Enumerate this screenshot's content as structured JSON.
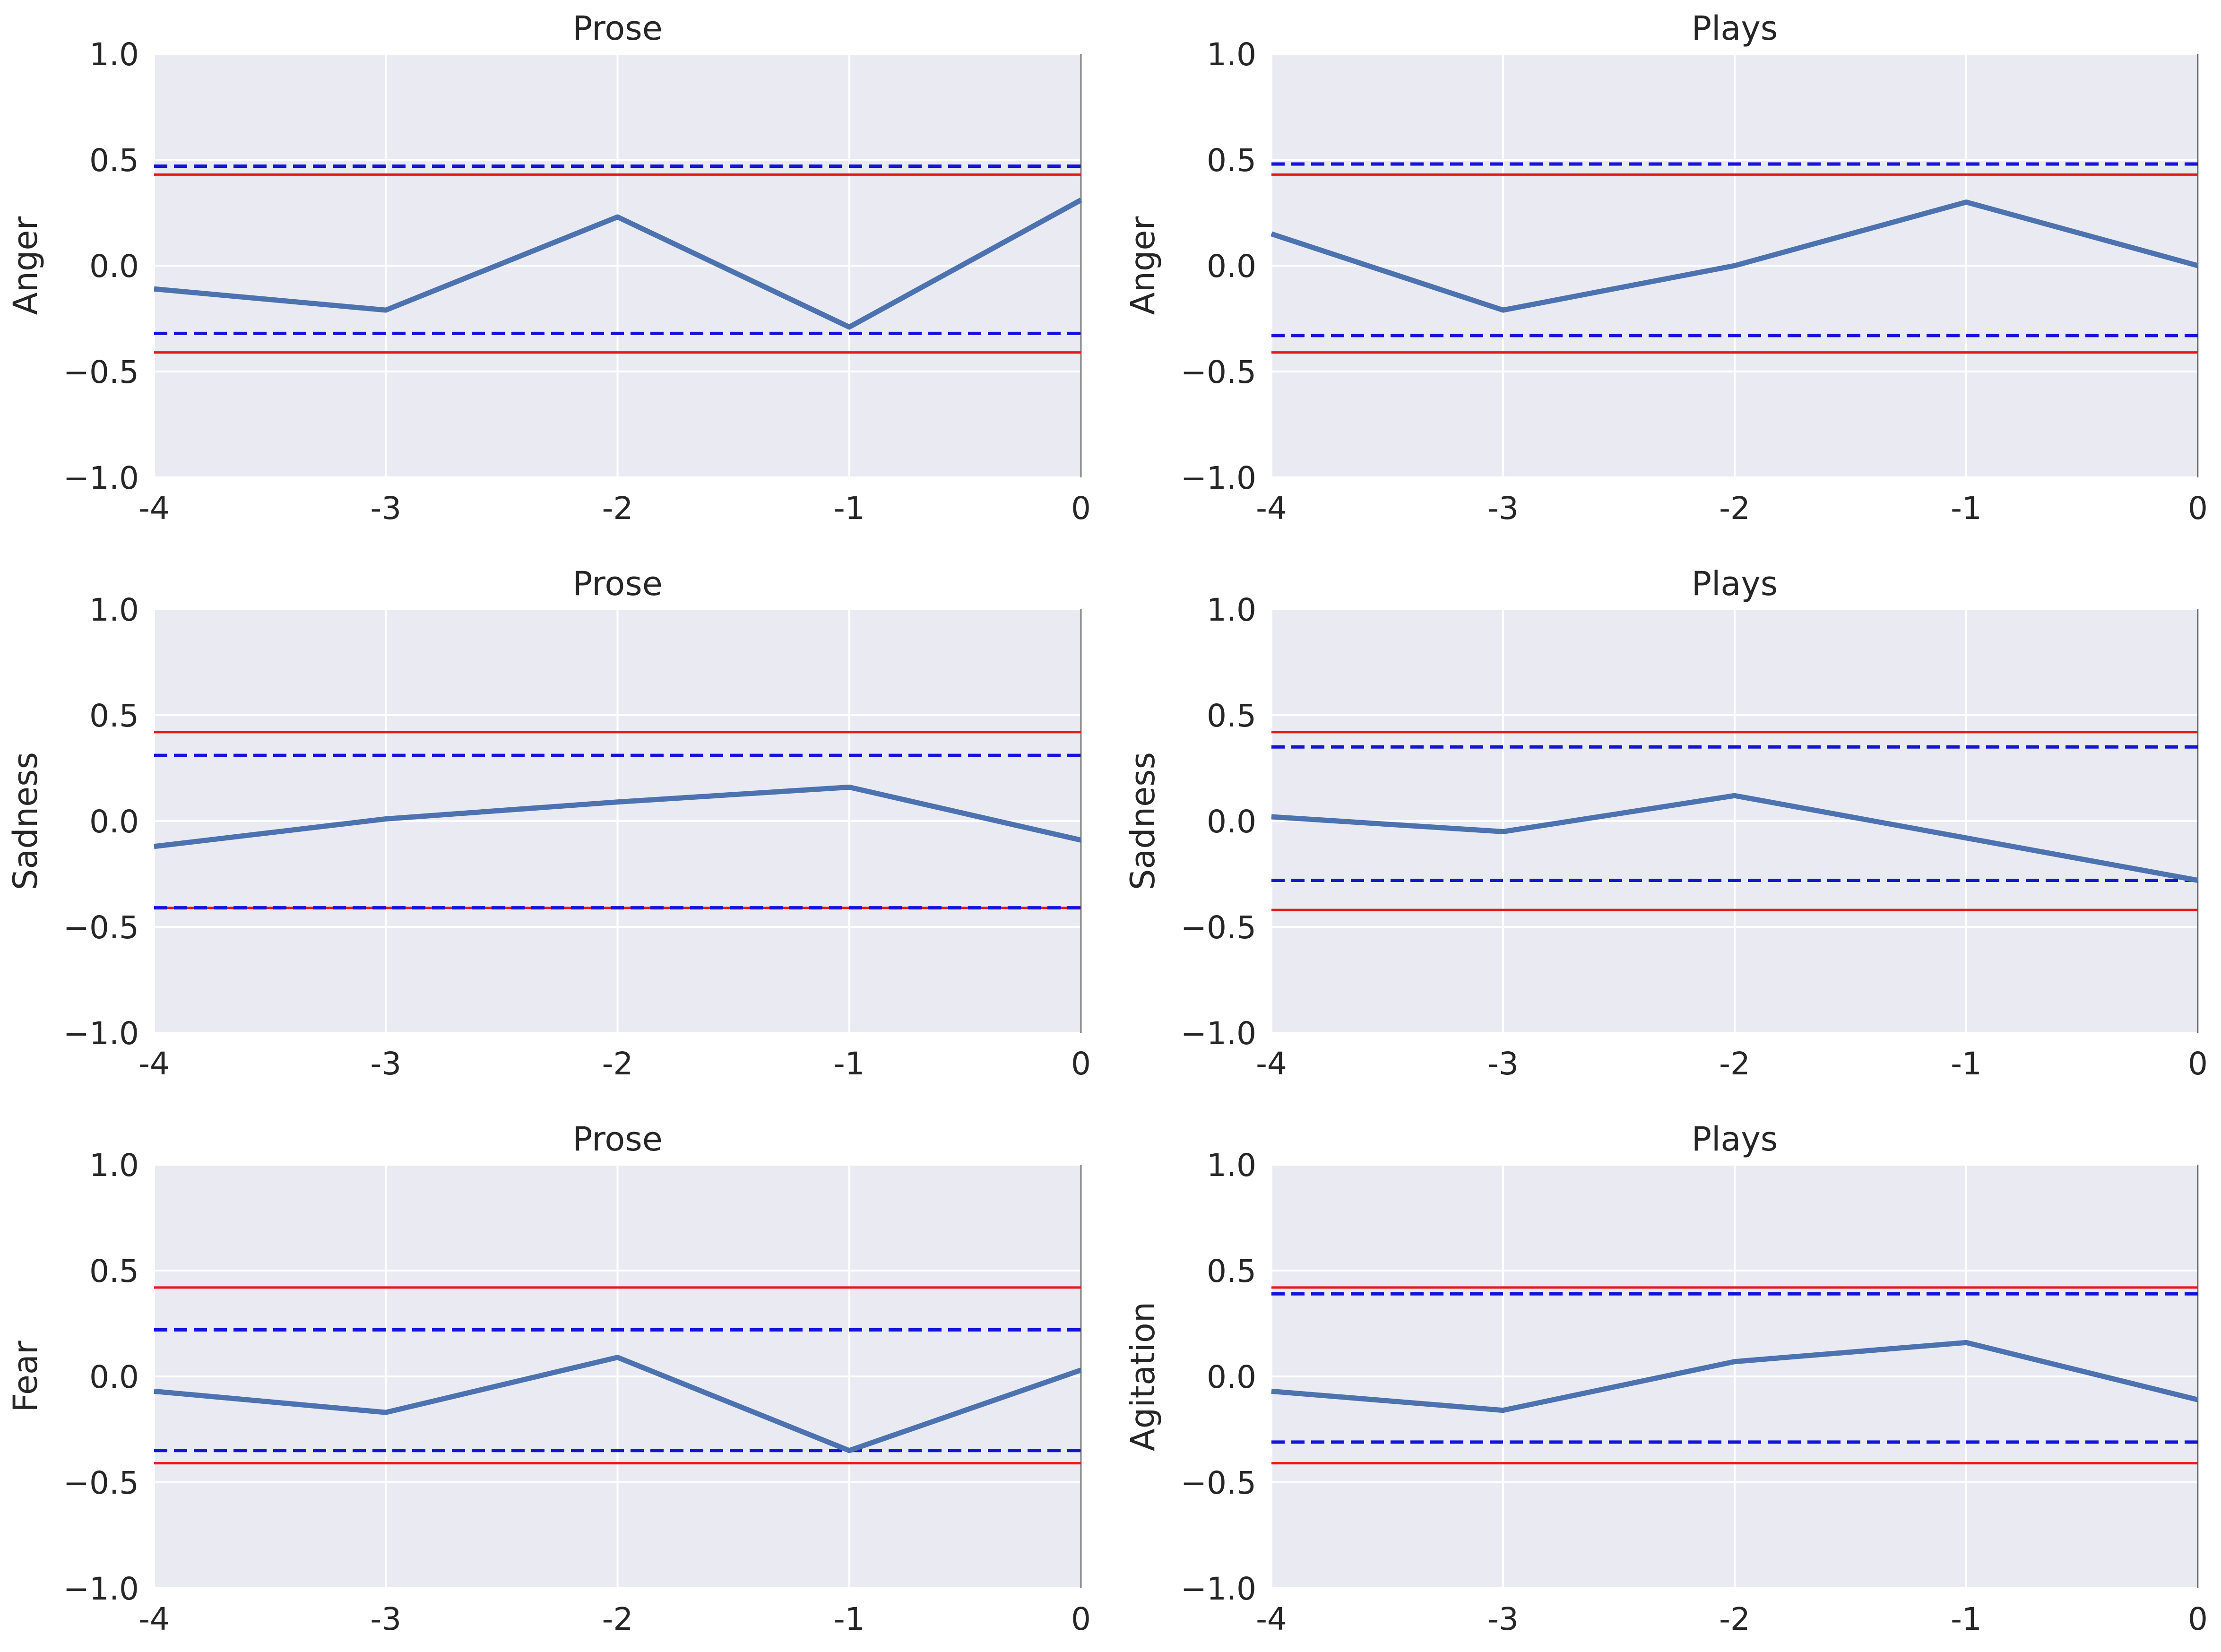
{
  "chart_data": [
    {
      "type": "line",
      "title": "Prose",
      "ylabel": "Anger",
      "x": [
        -4,
        -3,
        -2,
        -1,
        0
      ],
      "xticklabels": [
        "-4",
        "-3",
        "-2",
        "-1",
        "0"
      ],
      "ylim": [
        -1.0,
        1.0
      ],
      "yticklabels": [
        "1.0",
        "0.5",
        "0.0",
        "−0.5",
        "−1.0"
      ],
      "yticks": [
        1.0,
        0.5,
        0.0,
        -0.5,
        -1.0
      ],
      "series": [
        {
          "values": [
            -0.11,
            -0.21,
            0.23,
            -0.29,
            0.31
          ]
        }
      ],
      "hlines_solid": [
        0.43,
        -0.41
      ],
      "hlines_dashed": [
        0.47,
        -0.32
      ],
      "grid": true
    },
    {
      "type": "line",
      "title": "Plays",
      "ylabel": "Anger",
      "x": [
        -4,
        -3,
        -2,
        -1,
        0
      ],
      "xticklabels": [
        "-4",
        "-3",
        "-2",
        "-1",
        "0"
      ],
      "ylim": [
        -1.0,
        1.0
      ],
      "yticklabels": [
        "1.0",
        "0.5",
        "0.0",
        "−0.5",
        "−1.0"
      ],
      "yticks": [
        1.0,
        0.5,
        0.0,
        -0.5,
        -1.0
      ],
      "series": [
        {
          "values": [
            0.15,
            -0.21,
            0.0,
            0.3,
            0.0
          ]
        }
      ],
      "hlines_solid": [
        0.43,
        -0.41
      ],
      "hlines_dashed": [
        0.48,
        -0.33
      ],
      "grid": true
    },
    {
      "type": "line",
      "title": "Prose",
      "ylabel": "Sadness",
      "x": [
        -4,
        -3,
        -2,
        -1,
        0
      ],
      "xticklabels": [
        "-4",
        "-3",
        "-2",
        "-1",
        "0"
      ],
      "ylim": [
        -1.0,
        1.0
      ],
      "yticklabels": [
        "1.0",
        "0.5",
        "0.0",
        "−0.5",
        "−1.0"
      ],
      "yticks": [
        1.0,
        0.5,
        0.0,
        -0.5,
        -1.0
      ],
      "series": [
        {
          "values": [
            -0.12,
            0.01,
            0.09,
            0.16,
            -0.09
          ]
        }
      ],
      "hlines_solid": [
        0.42,
        -0.41
      ],
      "hlines_dashed": [
        0.31,
        -0.41
      ],
      "grid": true
    },
    {
      "type": "line",
      "title": "Plays",
      "ylabel": "Sadness",
      "x": [
        -4,
        -3,
        -2,
        -1,
        0
      ],
      "xticklabels": [
        "-4",
        "-3",
        "-2",
        "-1",
        "0"
      ],
      "ylim": [
        -1.0,
        1.0
      ],
      "yticklabels": [
        "1.0",
        "0.5",
        "0.0",
        "−0.5",
        "−1.0"
      ],
      "yticks": [
        1.0,
        0.5,
        0.0,
        -0.5,
        -1.0
      ],
      "series": [
        {
          "values": [
            0.02,
            -0.05,
            0.12,
            -0.08,
            -0.28
          ]
        }
      ],
      "hlines_solid": [
        0.42,
        -0.42
      ],
      "hlines_dashed": [
        0.35,
        -0.28
      ],
      "grid": true
    },
    {
      "type": "line",
      "title": "Prose",
      "ylabel": "Fear",
      "x": [
        -4,
        -3,
        -2,
        -1,
        0
      ],
      "xticklabels": [
        "-4",
        "-3",
        "-2",
        "-1",
        "0"
      ],
      "ylim": [
        -1.0,
        1.0
      ],
      "yticklabels": [
        "1.0",
        "0.5",
        "0.0",
        "−0.5",
        "−1.0"
      ],
      "yticks": [
        1.0,
        0.5,
        0.0,
        -0.5,
        -1.0
      ],
      "series": [
        {
          "values": [
            -0.07,
            -0.17,
            0.09,
            -0.35,
            0.03
          ]
        }
      ],
      "hlines_solid": [
        0.42,
        -0.41
      ],
      "hlines_dashed": [
        0.22,
        -0.35
      ],
      "grid": true
    },
    {
      "type": "line",
      "title": "Plays",
      "ylabel": "Agitation",
      "x": [
        -4,
        -3,
        -2,
        -1,
        0
      ],
      "xticklabels": [
        "-4",
        "-3",
        "-2",
        "-1",
        "0"
      ],
      "ylim": [
        -1.0,
        1.0
      ],
      "yticklabels": [
        "1.0",
        "0.5",
        "0.0",
        "−0.5",
        "−1.0"
      ],
      "yticks": [
        1.0,
        0.5,
        0.0,
        -0.5,
        -1.0
      ],
      "series": [
        {
          "values": [
            -0.07,
            -0.16,
            0.07,
            0.16,
            -0.11
          ]
        }
      ],
      "hlines_solid": [
        0.42,
        -0.41
      ],
      "hlines_dashed": [
        0.39,
        -0.31
      ],
      "grid": true
    }
  ],
  "colors": {
    "background_panel": "#eaeaf2",
    "grid": "#ffffff",
    "series_line": "#4c72b0",
    "solid_reference": "#e8171c",
    "dashed_reference": "#1414d8",
    "text": "#262626"
  }
}
